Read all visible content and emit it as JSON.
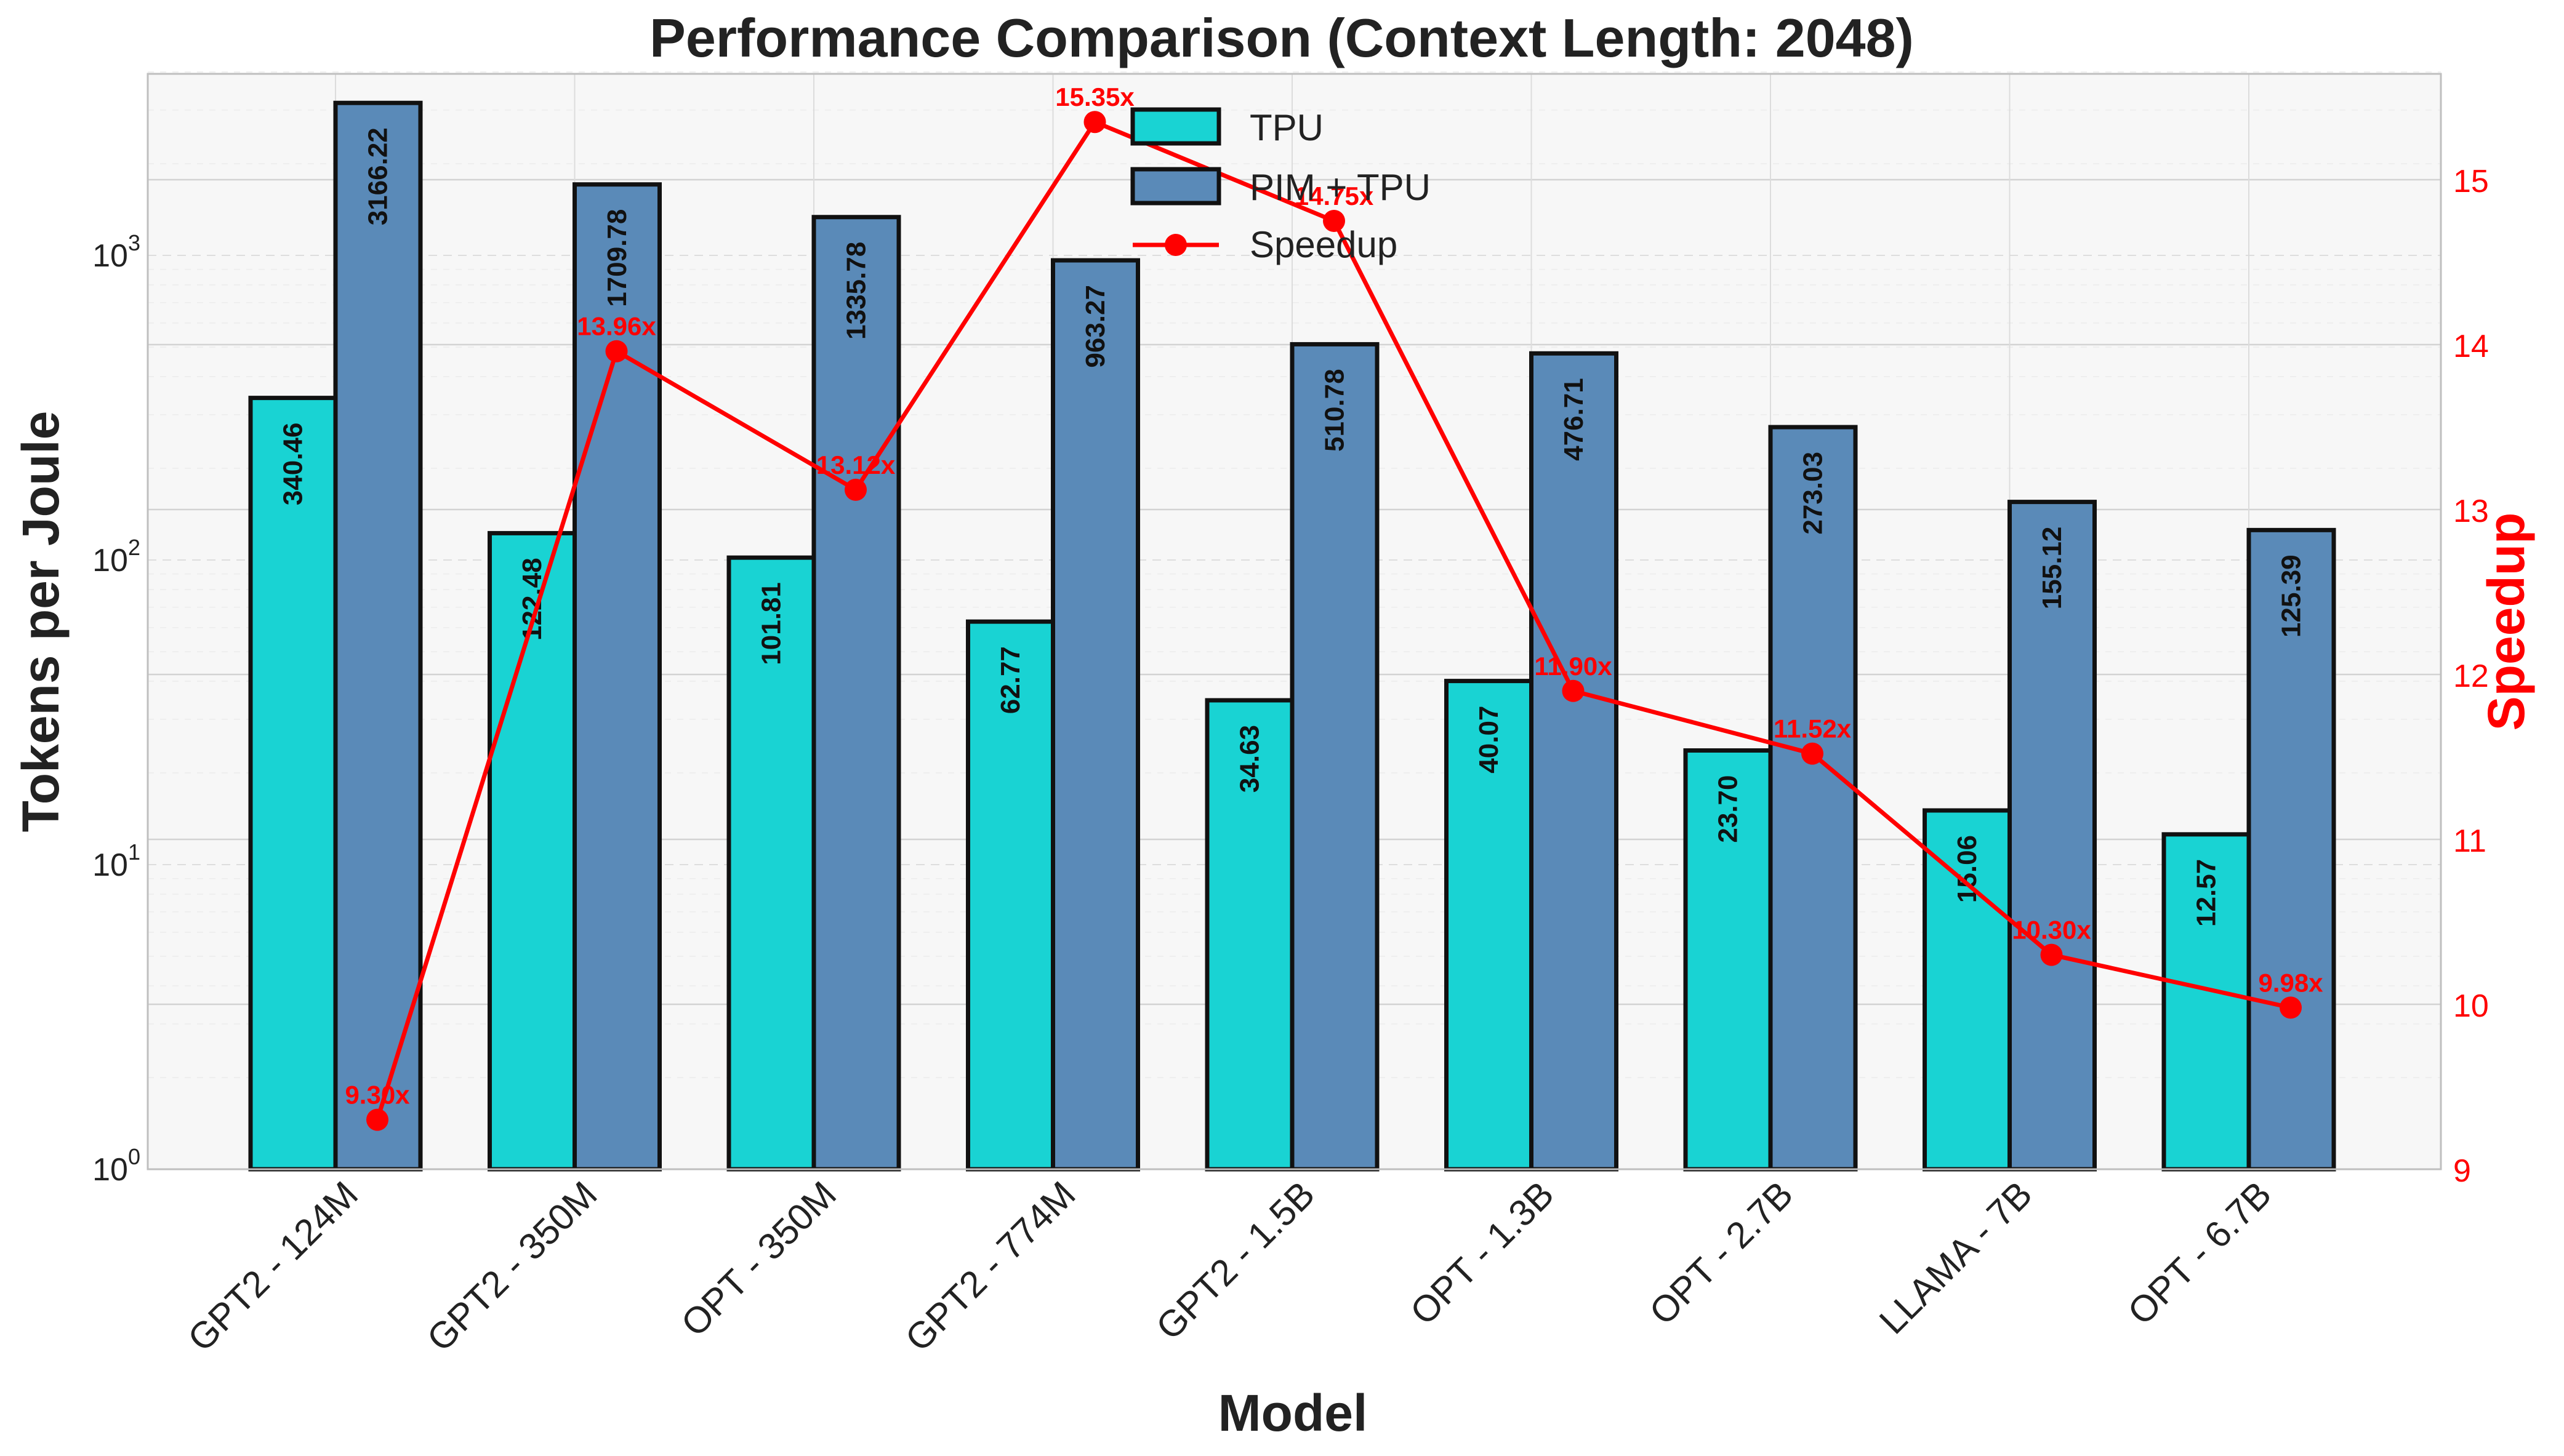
{
  "chart_data": {
    "type": "bar",
    "title": "Performance Comparison (Context Length: 2048)",
    "xlabel": "Model",
    "ylabel": "Tokens per Joule",
    "y2label": "Speedup",
    "yscale": "log",
    "ylim": [
      1,
      4000
    ],
    "y_ticks": [
      {
        "value": 1,
        "base": "10",
        "exp": "0"
      },
      {
        "value": 10,
        "base": "10",
        "exp": "1"
      },
      {
        "value": 100,
        "base": "10",
        "exp": "2"
      },
      {
        "value": 1000,
        "base": "10",
        "exp": "3"
      }
    ],
    "y2lim": [
      9,
      15.6
    ],
    "y2_ticks": [
      9,
      10,
      11,
      12,
      13,
      14,
      15
    ],
    "grid": true,
    "legend_position": "top-center",
    "categories": [
      "GPT2 - 124M",
      "GPT2 - 350M",
      "OPT - 350M",
      "GPT2 - 774M",
      "GPT2 - 1.5B",
      "OPT - 1.3B",
      "OPT - 2.7B",
      "LLAMA - 7B",
      "OPT - 6.7B"
    ],
    "series": [
      {
        "name": "TPU",
        "color": "#19d3d3",
        "values": [
          340.46,
          122.48,
          101.81,
          62.77,
          34.63,
          40.07,
          23.7,
          15.06,
          12.57
        ],
        "labels": [
          "340.46",
          "122.48",
          "101.81",
          "62.77",
          "34.63",
          "40.07",
          "23.70",
          "15.06",
          "12.57"
        ]
      },
      {
        "name": "PIM + TPU",
        "color": "#5a8ab8",
        "values": [
          3166.22,
          1709.78,
          1335.78,
          963.27,
          510.78,
          476.71,
          273.03,
          155.12,
          125.39
        ],
        "labels": [
          "3166.22",
          "1709.78",
          "1335.78",
          "963.27",
          "510.78",
          "476.71",
          "273.03",
          "155.12",
          "125.39"
        ]
      }
    ],
    "speedup": {
      "name": "Speedup",
      "color": "#ff0000",
      "values": [
        9.3,
        13.96,
        13.12,
        15.35,
        14.75,
        11.9,
        11.52,
        10.3,
        9.98
      ],
      "labels": [
        "9.30x",
        "13.96x",
        "13.12x",
        "15.35x",
        "14.75x",
        "11.90x",
        "11.52x",
        "10.30x",
        "9.98x"
      ]
    }
  }
}
